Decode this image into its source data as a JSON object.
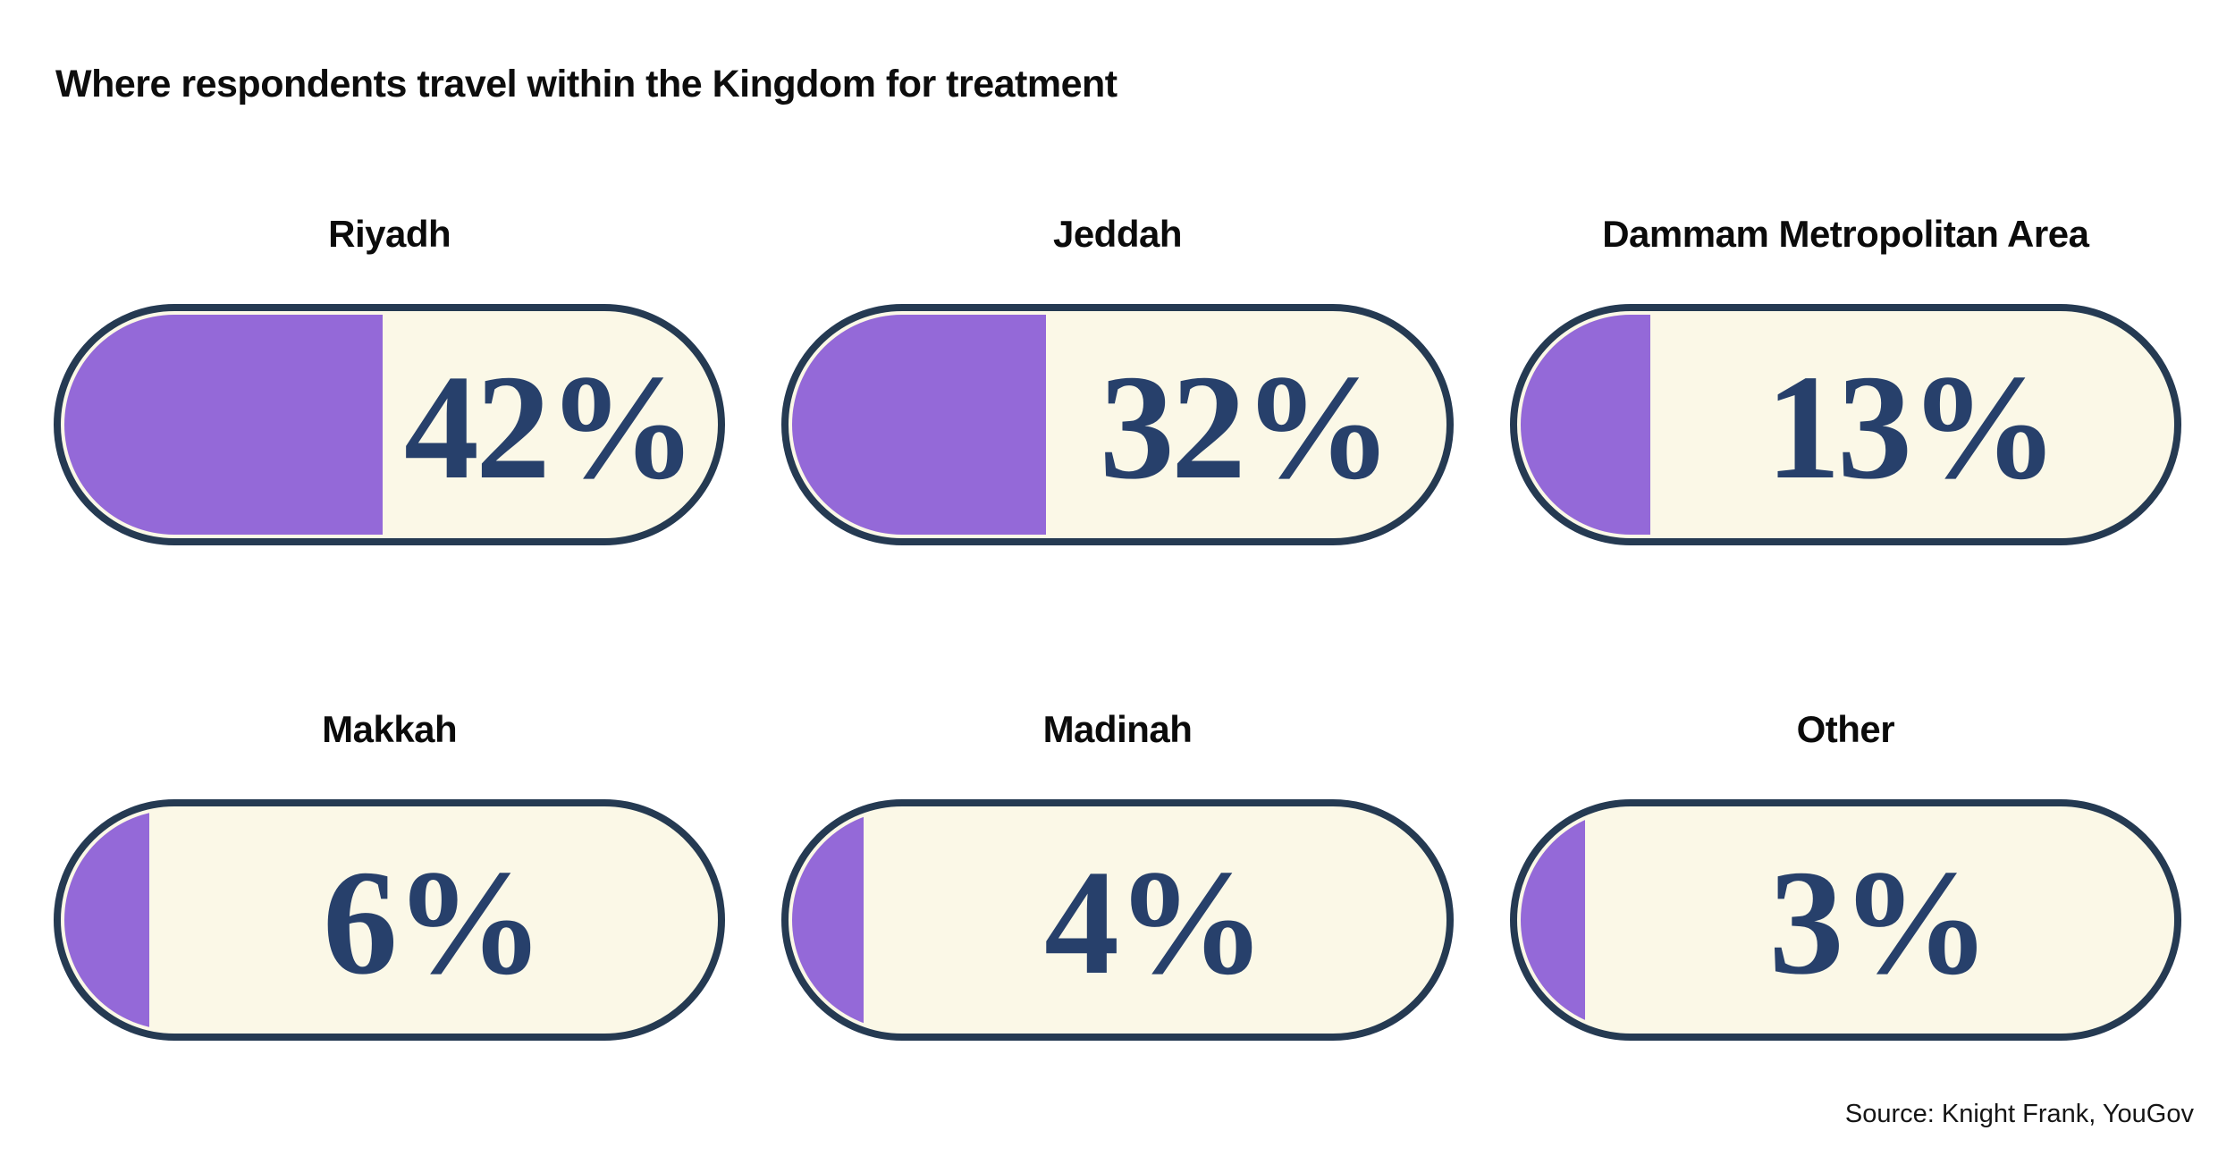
{
  "title": "Where respondents travel within the Kingdom for treatment",
  "source": "Source: Knight Frank, YouGov",
  "colors": {
    "fill_purple": "#9469D8",
    "track_cream": "#FBF8E7",
    "outline_navy": "#253A52",
    "value_navy": "#27406B",
    "text_black": "#0d0d0d",
    "background": "#ffffff"
  },
  "chart_data": {
    "type": "bar",
    "subtype": "capsule-gauge-grid",
    "title": "Where respondents travel within the Kingdom for treatment",
    "categories": [
      "Riyadh",
      "Jeddah",
      "Dammam Metropolitan Area",
      "Makkah",
      "Madinah",
      "Other"
    ],
    "values": [
      42,
      32,
      13,
      6,
      4,
      3
    ],
    "value_labels": [
      "42%",
      "32%",
      "13%",
      "6%",
      "4%",
      "3%"
    ],
    "unit": "%",
    "layout": "2 rows x 3 columns",
    "fill_color": "#9469D8",
    "track_color": "#FBF8E7",
    "outline_color": "#253A52",
    "value_text_color": "#27406B",
    "source": "Source: Knight Frank, YouGov"
  }
}
